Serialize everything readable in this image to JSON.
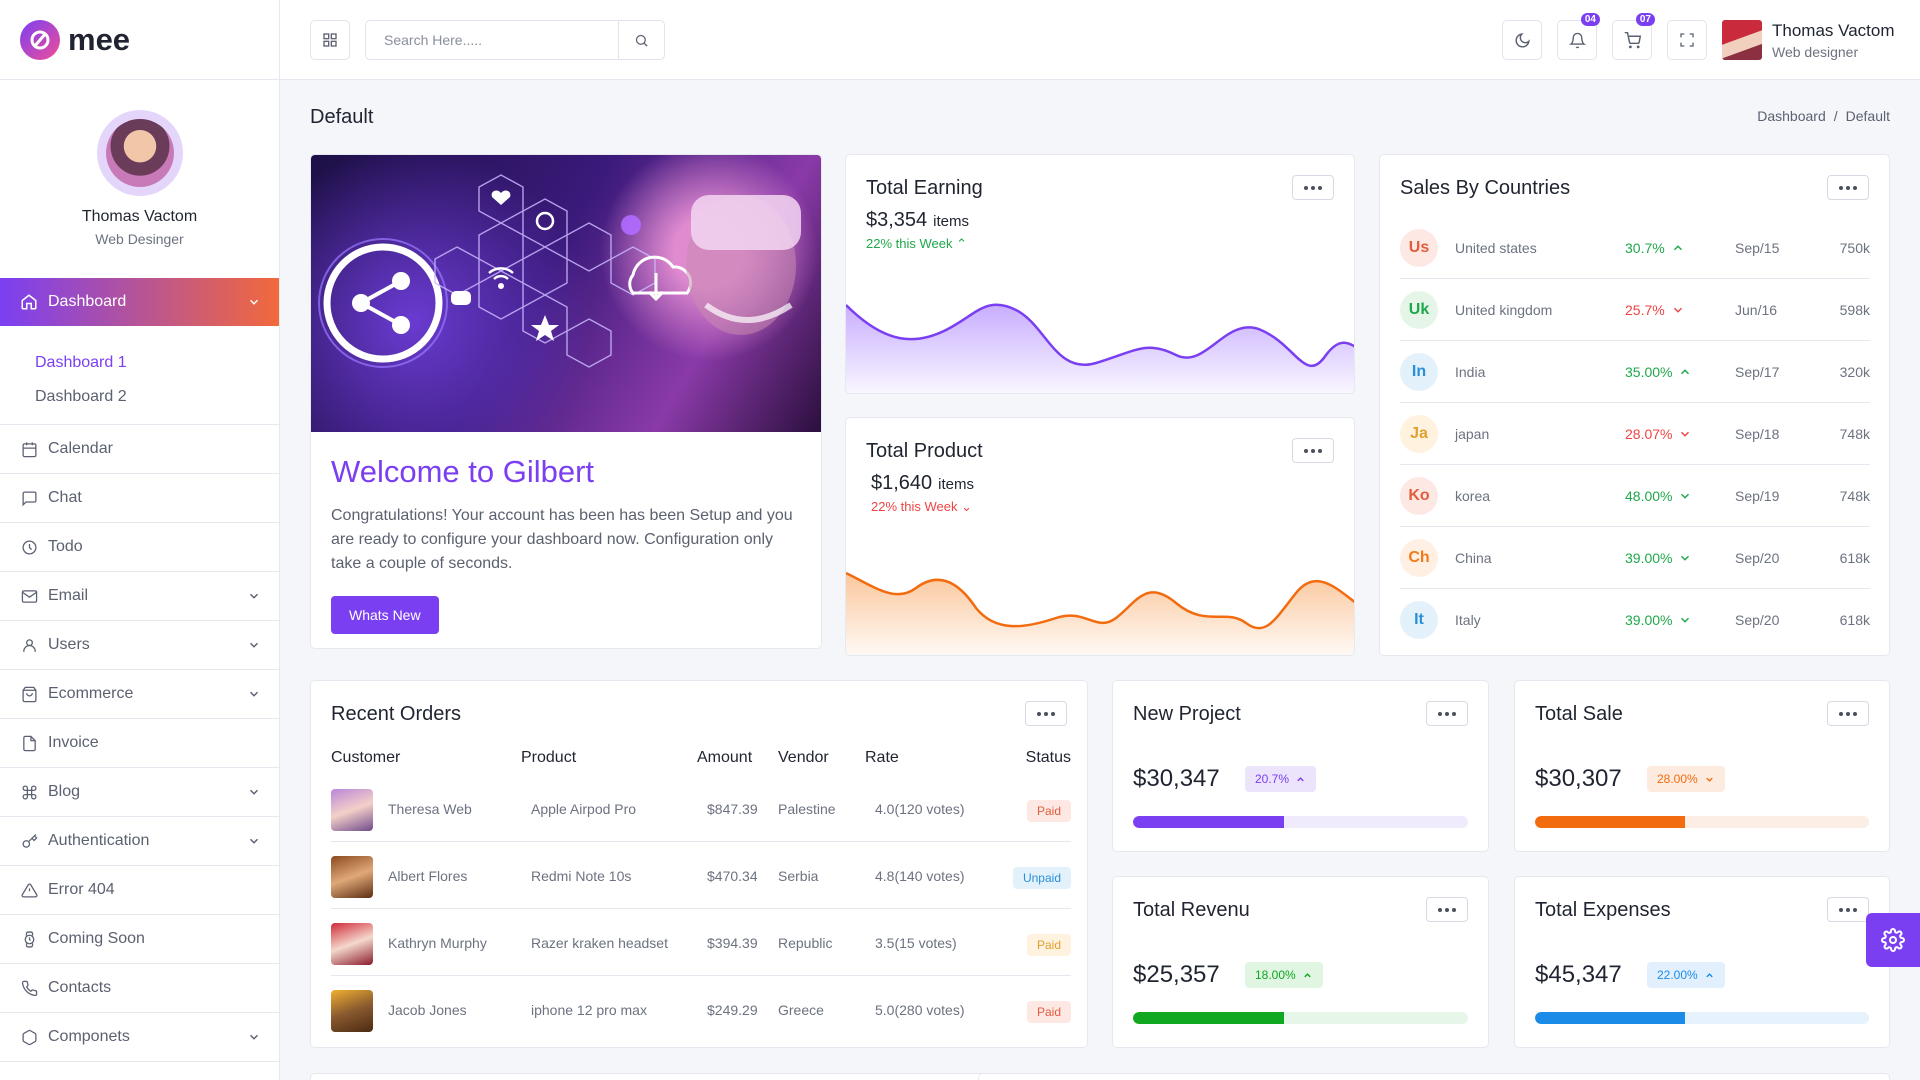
{
  "brand": {
    "name": "mee"
  },
  "profile": {
    "name": "Thomas Vactom",
    "role": "Web Desinger"
  },
  "sidebar": {
    "active": {
      "label": "Dashboard"
    },
    "sub": [
      "Dashboard 1",
      "Dashboard 2"
    ],
    "items": [
      {
        "label": "Calendar",
        "icon": "calendar-icon"
      },
      {
        "label": "Chat",
        "icon": "chat-icon"
      },
      {
        "label": "Todo",
        "icon": "clock-icon"
      },
      {
        "label": "Email",
        "icon": "mail-icon"
      },
      {
        "label": "Users",
        "icon": "user-icon"
      },
      {
        "label": "Ecommerce",
        "icon": "bag-icon"
      },
      {
        "label": "Invoice",
        "icon": "file-icon"
      },
      {
        "label": "Blog",
        "icon": "command-icon"
      },
      {
        "label": "Authentication",
        "icon": "key-icon"
      },
      {
        "label": "Error 404",
        "icon": "alert-icon"
      },
      {
        "label": "Coming Soon",
        "icon": "watch-icon"
      },
      {
        "label": "Contacts",
        "icon": "phone-icon"
      },
      {
        "label": "Componets",
        "icon": "box-icon"
      }
    ]
  },
  "header": {
    "search_placeholder": "Search Here.....",
    "notifications_count": "04",
    "cart_count": "07",
    "user_name": "Thomas Vactom",
    "user_role": "Web designer"
  },
  "page": {
    "title": "Default",
    "breadcrumb": [
      "Dashboard",
      "/",
      "Default"
    ]
  },
  "welcome": {
    "title": "Welcome to Gilbert",
    "text": "Congratulations! Your account has been has been Setup and you are ready to configure your dashboard now. Configuration only take a couple of seconds.",
    "button": "Whats New"
  },
  "earning": {
    "title": "Total Earning",
    "value": "$3,354",
    "unit": "items",
    "trend": "22% this Week"
  },
  "product": {
    "title": "Total Product",
    "value": "$1,640",
    "unit": "items",
    "trend": "22% this Week"
  },
  "countries": {
    "title": "Sales By Countries",
    "rows": [
      {
        "code": "Us",
        "name": "United states",
        "pct": "30.7%",
        "dir": "up",
        "date": "Sep/15",
        "value": "750k",
        "bg": "#fde8e4",
        "fg": "#e25d3c"
      },
      {
        "code": "Uk",
        "name": "United kingdom",
        "pct": "25.7%",
        "dir": "down",
        "date": "Jun/16",
        "value": "598k",
        "bg": "#e5f6e9",
        "fg": "#1fa84b"
      },
      {
        "code": "In",
        "name": "India",
        "pct": "35.00%",
        "dir": "up",
        "date": "Sep/17",
        "value": "320k",
        "bg": "#e3f1fb",
        "fg": "#2a8fd8"
      },
      {
        "code": "Ja",
        "name": "japan",
        "pct": "28.07%",
        "dir": "down",
        "date": "Sep/18",
        "value": "748k",
        "bg": "#fff2df",
        "fg": "#e0a030"
      },
      {
        "code": "Ko",
        "name": "korea",
        "pct": "48.00%",
        "dir": "down",
        "date": "Sep/19",
        "value": "748k",
        "bg": "#fde8e4",
        "fg": "#e25d3c"
      },
      {
        "code": "Ch",
        "name": "China",
        "pct": "39.00%",
        "dir": "down",
        "date": "Sep/20",
        "value": "618k",
        "bg": "#fff0e3",
        "fg": "#f07a1a"
      },
      {
        "code": "It",
        "name": "Italy",
        "pct": "39.00%",
        "dir": "down",
        "date": "Sep/20",
        "value": "618k",
        "bg": "#e3f1fb",
        "fg": "#2a8fd8"
      }
    ]
  },
  "orders": {
    "title": "Recent Orders",
    "headers": [
      "Customer",
      "Product",
      "Amount",
      "Vendor",
      "Rate",
      "Status"
    ],
    "rows": [
      {
        "customer": "Theresa Web",
        "product": "Apple Airpod Pro",
        "amount": "$847.39",
        "vendor": "Palestine",
        "rate": "4.0(120 votes)",
        "status": "Paid",
        "kind": "paid"
      },
      {
        "customer": "Albert Flores",
        "product": "Redmi Note 10s",
        "amount": "$470.34",
        "vendor": "Serbia",
        "rate": "4.8(140 votes)",
        "status": "Unpaid",
        "kind": "unpaid"
      },
      {
        "customer": "Kathryn Murphy",
        "product": "Razer kraken headset",
        "amount": "$394.39",
        "vendor": "Republic",
        "rate": "3.5(15 votes)",
        "status": "Paid",
        "kind": "paid-y"
      },
      {
        "customer": "Jacob Jones",
        "product": "iphone 12 pro max",
        "amount": "$249.29",
        "vendor": "Greece",
        "rate": "5.0(280 votes)",
        "status": "Paid",
        "kind": "paid"
      }
    ]
  },
  "stats": {
    "new_project": {
      "title": "New Project",
      "value": "$30,347",
      "pct": "20.7%",
      "progress": 0.45,
      "color": "#7b3ff2"
    },
    "total_sale": {
      "title": "Total Sale",
      "value": "$30,307",
      "pct": "28.00%",
      "progress": 0.45,
      "color": "#f26b0f"
    },
    "total_revenu": {
      "title": "Total Revenu",
      "value": "$25,357",
      "pct": "18.00%",
      "progress": 0.45,
      "color": "#10a820"
    },
    "total_expenses": {
      "title": "Total Expenses",
      "value": "$45,347",
      "pct": "22.00%",
      "progress": 0.45,
      "color": "#1a8ce8"
    }
  }
}
